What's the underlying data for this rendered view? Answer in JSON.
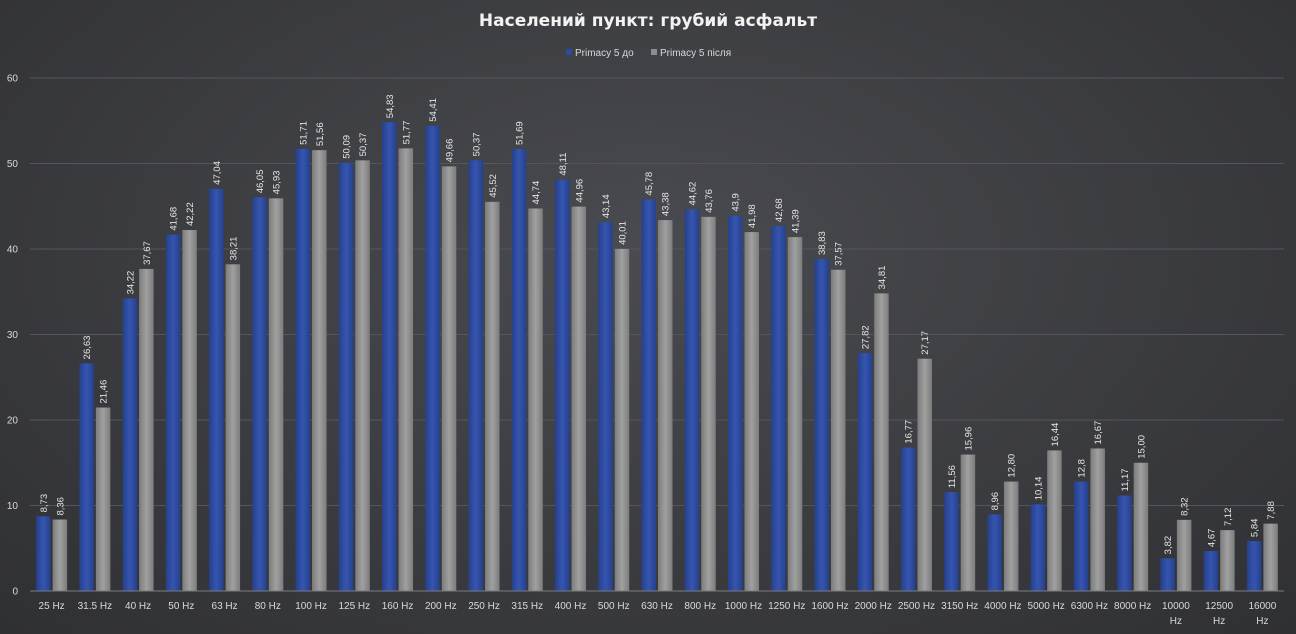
{
  "chart_data": {
    "type": "bar",
    "title": "Населений пункт: грубий асфальт",
    "xlabel": "",
    "ylabel": "",
    "ylim": [
      0,
      60
    ],
    "yticks": [
      0,
      10,
      20,
      30,
      40,
      50,
      60
    ],
    "grid": true,
    "legend_position": "top",
    "categories": [
      "25 Hz",
      "31.5 Hz",
      "40 Hz",
      "50 Hz",
      "63 Hz",
      "80 Hz",
      "100 Hz",
      "125 Hz",
      "160 Hz",
      "200 Hz",
      "250 Hz",
      "315 Hz",
      "400 Hz",
      "500 Hz",
      "630 Hz",
      "800 Hz",
      "1000 Hz",
      "1250 Hz",
      "1600 Hz",
      "2000 Hz",
      "2500 Hz",
      "3150 Hz",
      "4000 Hz",
      "5000 Hz",
      "6300 Hz",
      "8000 Hz",
      "10000 Hz",
      "12500 Hz",
      "16000 Hz"
    ],
    "series": [
      {
        "name": "Primacy 5 до",
        "color": "#2e4a9e",
        "values": [
          8.73,
          26.63,
          34.22,
          41.68,
          47.04,
          46.05,
          51.71,
          50.09,
          54.83,
          54.41,
          50.37,
          51.69,
          48.11,
          43.14,
          45.78,
          44.62,
          43.9,
          42.68,
          38.83,
          27.82,
          16.77,
          11.56,
          8.96,
          10.14,
          12.8,
          11.17,
          3.82,
          4.67,
          5.84
        ],
        "labels": [
          "8,73",
          "26,63",
          "34,22",
          "41,68",
          "47,04",
          "46,05",
          "51,71",
          "50,09",
          "54,83",
          "54,41",
          "50,37",
          "51,69",
          "48,11",
          "43,14",
          "45,78",
          "44,62",
          "43,9",
          "42,68",
          "38,83",
          "27,82",
          "16,77",
          "11,56",
          "8,96",
          "10,14",
          "12,8",
          "11,17",
          "3,82",
          "4,67",
          "5,84"
        ]
      },
      {
        "name": "Primacy 5 після",
        "color": "#8c8c8c",
        "values": [
          8.36,
          21.46,
          37.67,
          42.22,
          38.21,
          45.93,
          51.56,
          50.37,
          51.77,
          49.66,
          45.52,
          44.74,
          44.96,
          40.01,
          43.38,
          43.76,
          41.98,
          41.39,
          37.57,
          34.81,
          27.17,
          15.96,
          12.8,
          16.44,
          16.67,
          15.0,
          8.32,
          7.12,
          7.88
        ],
        "labels": [
          "8,36",
          "21,46",
          "37,67",
          "42,22",
          "38,21",
          "45,93",
          "51,56",
          "50,37",
          "51,77",
          "49,66",
          "45,52",
          "44,74",
          "44,96",
          "40,01",
          "43,38",
          "43,76",
          "41,98",
          "41,39",
          "37,57",
          "34,81",
          "27,17",
          "15,96",
          "12,80",
          "16,44",
          "16,67",
          "15,00",
          "8,32",
          "7,12",
          "7,88"
        ]
      }
    ]
  }
}
